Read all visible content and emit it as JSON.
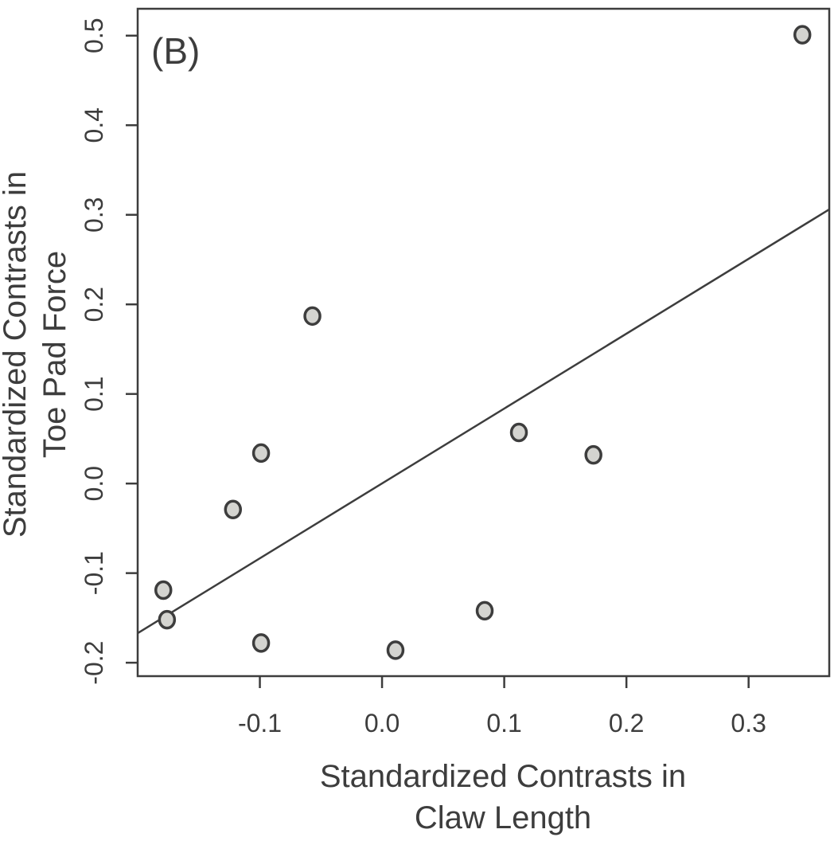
{
  "chart_data": {
    "type": "scatter",
    "panel_label": "(B)",
    "xlabel": [
      "Standardized Contrasts in",
      "Claw Length"
    ],
    "ylabel": [
      "Standardized Contrasts in",
      "Toe Pad Force"
    ],
    "xlim": [
      -0.2,
      0.366
    ],
    "ylim": [
      -0.215,
      0.53
    ],
    "xticks": [
      -0.1,
      0.0,
      0.1,
      0.2,
      0.3
    ],
    "xtick_labels": [
      "-0.1",
      "0.0",
      "0.1",
      "0.2",
      "0.3"
    ],
    "yticks": [
      -0.2,
      -0.1,
      0.0,
      0.1,
      0.2,
      0.3,
      0.4,
      0.5
    ],
    "ytick_labels": [
      "-0.2",
      "-0.1",
      "0.0",
      "0.1",
      "0.2",
      "0.3",
      "0.4",
      "0.5"
    ],
    "points": [
      {
        "x": -0.179,
        "y": -0.119
      },
      {
        "x": -0.176,
        "y": -0.152
      },
      {
        "x": -0.122,
        "y": -0.029
      },
      {
        "x": -0.099,
        "y": 0.034
      },
      {
        "x": -0.099,
        "y": -0.178
      },
      {
        "x": -0.057,
        "y": 0.187
      },
      {
        "x": 0.011,
        "y": -0.186
      },
      {
        "x": 0.084,
        "y": -0.142
      },
      {
        "x": 0.112,
        "y": 0.057
      },
      {
        "x": 0.173,
        "y": 0.032
      },
      {
        "x": 0.344,
        "y": 0.501
      }
    ],
    "fit_line": {
      "x": [
        -0.2,
        0.366
      ],
      "y": [
        -0.167,
        0.306
      ]
    },
    "grid": false,
    "colors": {
      "axis": "#3d3d3d",
      "point_fill": "#d4d4d0",
      "point_edge": "#3d3d3d",
      "line": "#3d3d3d"
    }
  }
}
